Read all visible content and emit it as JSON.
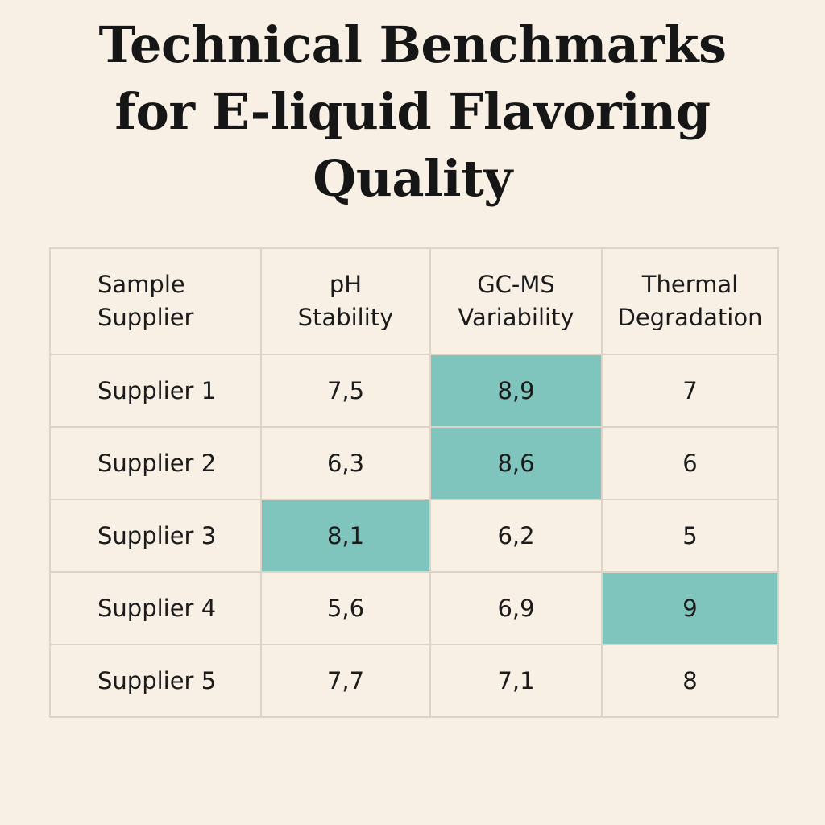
{
  "chart_data": {
    "type": "table",
    "title": [
      "Technical Benchmarks",
      "for E-liquid Flavoring",
      "Quality"
    ],
    "columns": [
      [
        "Sample",
        "Supplier"
      ],
      [
        "pH",
        "Stability"
      ],
      [
        "GC-MS",
        "Variability"
      ],
      [
        "Thermal",
        "Degradation"
      ]
    ],
    "rows": [
      {
        "supplier": "Supplier 1",
        "values": [
          "7,5",
          "8,9",
          "7"
        ],
        "highlight": [
          false,
          true,
          false
        ]
      },
      {
        "supplier": "Supplier 2",
        "values": [
          "6,3",
          "8,6",
          "6"
        ],
        "highlight": [
          false,
          true,
          false
        ]
      },
      {
        "supplier": "Supplier 3",
        "values": [
          "8,1",
          "6,2",
          "5"
        ],
        "highlight": [
          true,
          false,
          false
        ]
      },
      {
        "supplier": "Supplier 4",
        "values": [
          "5,6",
          "6,9",
          "9"
        ],
        "highlight": [
          false,
          false,
          true
        ]
      },
      {
        "supplier": "Supplier 5",
        "values": [
          "7,7",
          "7,1",
          "8"
        ],
        "highlight": [
          false,
          false,
          false
        ]
      }
    ],
    "highlight_color": "#7fc5be",
    "background_color": "#f8f0e4",
    "grid_color": "#dcd5c6"
  }
}
